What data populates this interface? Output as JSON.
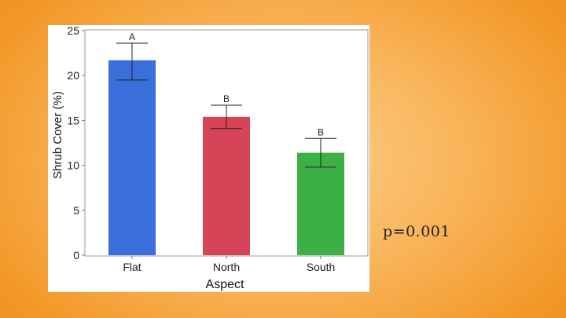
{
  "slide": {
    "p_value_text": "p=0.001"
  },
  "chart_data": {
    "type": "bar",
    "categories": [
      "Flat",
      "North",
      "South"
    ],
    "values": [
      21.7,
      15.4,
      11.4
    ],
    "error_low": [
      19.5,
      14.1,
      9.8
    ],
    "error_high": [
      23.6,
      16.7,
      13.0
    ],
    "significance_letters": [
      "A",
      "B",
      "B"
    ],
    "colors": [
      "#3a6fdb",
      "#d64557",
      "#3cb044"
    ],
    "title": "",
    "xlabel": "Aspect",
    "ylabel": "Shrub Cover (%)",
    "ylim": [
      0,
      25
    ],
    "yticks": [
      0,
      5,
      10,
      15,
      20,
      25
    ],
    "grid": false
  }
}
